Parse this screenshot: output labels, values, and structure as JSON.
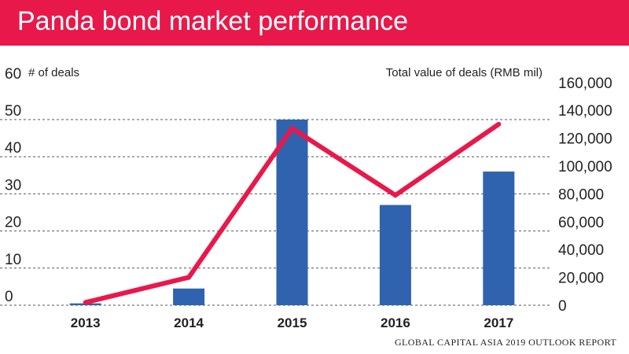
{
  "header": {
    "title": "Panda bond market performance",
    "banner_color": "#e8194a"
  },
  "source": "GLOBAL CAPITAL ASIA 2019 OUTLOOK REPORT",
  "colors": {
    "bars": "#2f63b0",
    "line": "#e8194a",
    "grid": "#555555",
    "text": "#222222"
  },
  "chart_data": {
    "type": "bar+line",
    "categories": [
      "2013",
      "2014",
      "2015",
      "2016",
      "2017"
    ],
    "series": [
      {
        "type": "bar",
        "axis": "left",
        "values": [
          0.5,
          4.5,
          50,
          27,
          36
        ]
      },
      {
        "type": "line",
        "axis": "right",
        "values": [
          2000,
          20000,
          127000,
          79000,
          130000
        ]
      }
    ],
    "y_left": {
      "label": "# of deals",
      "range": [
        0,
        60
      ],
      "ticks": [
        0,
        10,
        20,
        30,
        40,
        50,
        60
      ]
    },
    "y_right": {
      "label": "Total value of deals (RMB mil)",
      "range": [
        0,
        160000
      ],
      "ticks": [
        "0",
        "20,000",
        "40,000",
        "60,000",
        "80,000",
        "100,000",
        "120,000",
        "140,000",
        "160,000"
      ]
    },
    "grid": "horizontal dashed"
  }
}
